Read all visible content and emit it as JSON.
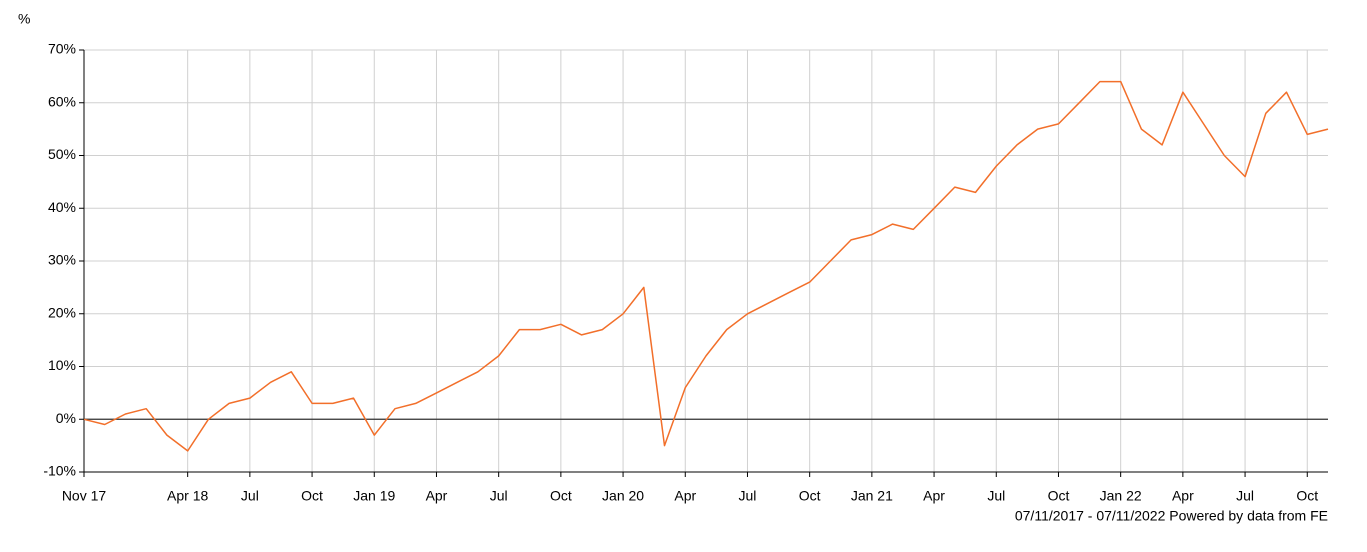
{
  "chart_data": {
    "type": "line",
    "y_unit_label": "%",
    "footer": "07/11/2017 - 07/11/2022 Powered by data from FE",
    "color": "#f26f2a",
    "grid": true,
    "x": [
      "2017-11",
      "2017-12",
      "2018-01",
      "2018-02",
      "2018-03",
      "2018-04",
      "2018-05",
      "2018-06",
      "2018-07",
      "2018-08",
      "2018-09",
      "2018-10",
      "2018-11",
      "2018-12",
      "2019-01",
      "2019-02",
      "2019-03",
      "2019-04",
      "2019-05",
      "2019-06",
      "2019-07",
      "2019-08",
      "2019-09",
      "2019-10",
      "2019-11",
      "2019-12",
      "2020-01",
      "2020-02",
      "2020-03",
      "2020-04",
      "2020-05",
      "2020-06",
      "2020-07",
      "2020-08",
      "2020-09",
      "2020-10",
      "2020-11",
      "2020-12",
      "2021-01",
      "2021-02",
      "2021-03",
      "2021-04",
      "2021-05",
      "2021-06",
      "2021-07",
      "2021-08",
      "2021-09",
      "2021-10",
      "2021-11",
      "2021-12",
      "2022-01",
      "2022-02",
      "2022-03",
      "2022-04",
      "2022-05",
      "2022-06",
      "2022-07",
      "2022-08",
      "2022-09",
      "2022-10",
      "2022-11"
    ],
    "values": [
      0,
      -1,
      1,
      2,
      -3,
      -6,
      0,
      3,
      4,
      7,
      9,
      3,
      3,
      4,
      -3,
      2,
      3,
      5,
      7,
      9,
      12,
      17,
      17,
      18,
      16,
      17,
      20,
      25,
      -5,
      6,
      12,
      17,
      20,
      22,
      24,
      26,
      30,
      34,
      35,
      37,
      36,
      40,
      44,
      43,
      48,
      52,
      55,
      56,
      60,
      64,
      64,
      55,
      52,
      62,
      56,
      50,
      46,
      58,
      62,
      54,
      55
    ],
    "xlim": [
      "2017-11",
      "2022-11"
    ],
    "xticks": [
      {
        "value": "2017-11",
        "label": "Nov 17"
      },
      {
        "value": "2018-04",
        "label": "Apr 18"
      },
      {
        "value": "2018-07",
        "label": "Jul"
      },
      {
        "value": "2018-10",
        "label": "Oct"
      },
      {
        "value": "2019-01",
        "label": "Jan 19"
      },
      {
        "value": "2019-04",
        "label": "Apr"
      },
      {
        "value": "2019-07",
        "label": "Jul"
      },
      {
        "value": "2019-10",
        "label": "Oct"
      },
      {
        "value": "2020-01",
        "label": "Jan 20"
      },
      {
        "value": "2020-04",
        "label": "Apr"
      },
      {
        "value": "2020-07",
        "label": "Jul"
      },
      {
        "value": "2020-10",
        "label": "Oct"
      },
      {
        "value": "2021-01",
        "label": "Jan 21"
      },
      {
        "value": "2021-04",
        "label": "Apr"
      },
      {
        "value": "2021-07",
        "label": "Jul"
      },
      {
        "value": "2021-10",
        "label": "Oct"
      },
      {
        "value": "2022-01",
        "label": "Jan 22"
      },
      {
        "value": "2022-04",
        "label": "Apr"
      },
      {
        "value": "2022-07",
        "label": "Jul"
      },
      {
        "value": "2022-10",
        "label": "Oct"
      }
    ],
    "ylim": [
      -10,
      70
    ],
    "yticks": [
      {
        "value": -10,
        "label": "-10%"
      },
      {
        "value": 0,
        "label": "0%"
      },
      {
        "value": 10,
        "label": "10%"
      },
      {
        "value": 20,
        "label": "20%"
      },
      {
        "value": 30,
        "label": "30%"
      },
      {
        "value": 40,
        "label": "40%"
      },
      {
        "value": 50,
        "label": "50%"
      },
      {
        "value": 60,
        "label": "60%"
      },
      {
        "value": 70,
        "label": "70%"
      }
    ]
  }
}
